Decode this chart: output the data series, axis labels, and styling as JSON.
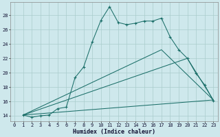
{
  "background_color": "#cee8ec",
  "grid_color": "#aacccc",
  "line_color": "#1a6e68",
  "xlabel": "Humidex (Indice chaleur)",
  "xlim": [
    -0.5,
    23.5
  ],
  "ylim": [
    13.2,
    29.8
  ],
  "yticks": [
    14,
    16,
    18,
    20,
    22,
    24,
    26,
    28
  ],
  "xticks": [
    0,
    1,
    2,
    3,
    4,
    5,
    6,
    7,
    8,
    9,
    10,
    11,
    12,
    13,
    14,
    15,
    16,
    17,
    18,
    19,
    20,
    21,
    22,
    23
  ],
  "curve_x": [
    1,
    2,
    3,
    4,
    5,
    6,
    7,
    8,
    9,
    10,
    11,
    12,
    13,
    14,
    15,
    16,
    17,
    18,
    19,
    20,
    21,
    22,
    23
  ],
  "curve_y": [
    14.1,
    13.8,
    14.0,
    14.1,
    15.0,
    15.2,
    19.3,
    20.8,
    24.3,
    27.3,
    29.2,
    27.0,
    26.7,
    26.9,
    27.2,
    27.2,
    27.6,
    25.0,
    23.2,
    22.0,
    19.9,
    18.3,
    16.1
  ],
  "straight_line1_x": [
    1,
    23
  ],
  "straight_line1_y": [
    14.1,
    16.2
  ],
  "straight_line2_x": [
    1,
    20,
    23
  ],
  "straight_line2_y": [
    14.1,
    22.0,
    16.2
  ],
  "straight_line3_x": [
    1,
    17,
    23
  ],
  "straight_line3_y": [
    14.1,
    23.2,
    16.2
  ]
}
